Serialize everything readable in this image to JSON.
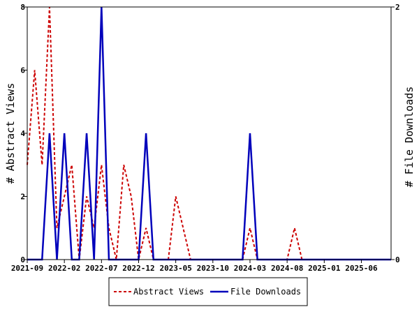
{
  "chart_data": {
    "type": "line",
    "x": [
      "2021-09",
      "2021-10",
      "2021-11",
      "2021-12",
      "2022-01",
      "2022-02",
      "2022-03",
      "2022-04",
      "2022-05",
      "2022-06",
      "2022-07",
      "2022-08",
      "2022-09",
      "2022-10",
      "2022-11",
      "2022-12",
      "2023-01",
      "2023-02",
      "2023-03",
      "2023-04",
      "2023-05",
      "2023-06",
      "2023-07",
      "2023-08",
      "2023-09",
      "2023-10",
      "2023-11",
      "2023-12",
      "2024-01",
      "2024-02",
      "2024-03",
      "2024-04",
      "2024-05",
      "2024-06",
      "2024-07",
      "2024-08",
      "2024-09",
      "2024-10",
      "2024-11",
      "2024-12",
      "2025-01",
      "2025-02",
      "2025-03",
      "2025-04",
      "2025-05",
      "2025-06",
      "2025-07",
      "2025-08",
      "2025-09",
      "2025-10"
    ],
    "x_tick_labels": [
      "2021-09",
      "2022-02",
      "2022-07",
      "2022-12",
      "2023-05",
      "2023-10",
      "2024-03",
      "2024-08",
      "2025-01",
      "2025-06"
    ],
    "series": [
      {
        "name": "Abstract Views",
        "axis": "left",
        "color": "#cc0000",
        "style": "dashed",
        "values": [
          3,
          6,
          3,
          8,
          1,
          2,
          3,
          0,
          2,
          1,
          3,
          1,
          0,
          3,
          2,
          0,
          1,
          0,
          0,
          0,
          2,
          1,
          0,
          0,
          0,
          0,
          0,
          0,
          0,
          0,
          1,
          0,
          0,
          0,
          0,
          0,
          1,
          0,
          0,
          0,
          0,
          0,
          0,
          0,
          0,
          0,
          0,
          0,
          0,
          0
        ]
      },
      {
        "name": "File Downloads",
        "axis": "right",
        "color": "#0000bb",
        "style": "solid",
        "values": [
          0,
          0,
          0,
          1,
          0,
          1,
          0,
          0,
          1,
          0,
          2,
          0,
          0,
          0,
          0,
          0,
          1,
          0,
          0,
          0,
          0,
          0,
          0,
          0,
          0,
          0,
          0,
          0,
          0,
          0,
          1,
          0,
          0,
          0,
          0,
          0,
          0,
          0,
          0,
          0,
          0,
          0,
          0,
          0,
          0,
          0,
          0,
          0,
          0,
          0
        ]
      }
    ],
    "ylabel": "# Abstract Views",
    "y2label": "# File Downloads",
    "ylim": [
      0,
      8
    ],
    "y2lim": [
      0,
      2
    ],
    "y_ticks": [
      "0",
      "2",
      "4",
      "6",
      "8"
    ],
    "y2_ticks": [
      "0",
      "2"
    ],
    "legend_position": "bottom-center",
    "grid": false
  }
}
